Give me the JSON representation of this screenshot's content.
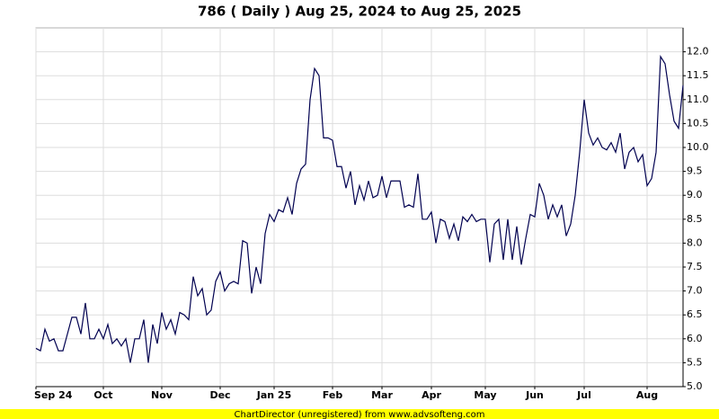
{
  "chart_data": {
    "type": "line",
    "title": "786 ( Daily ) Aug 25, 2024 to Aug 25, 2025",
    "footer": "ChartDirector (unregistered) from www.advsofteng.com",
    "categories": [
      "Sep 24",
      null,
      null,
      null,
      null,
      null,
      null,
      null,
      null,
      null,
      null,
      null,
      null,
      null,
      null,
      "Oct",
      null,
      null,
      null,
      null,
      null,
      null,
      null,
      null,
      null,
      null,
      null,
      null,
      "Nov",
      null,
      null,
      null,
      null,
      null,
      null,
      null,
      null,
      null,
      null,
      null,
      null,
      "Dec",
      null,
      null,
      null,
      null,
      null,
      null,
      null,
      null,
      null,
      null,
      null,
      "Jan 25",
      null,
      null,
      null,
      null,
      null,
      null,
      null,
      null,
      null,
      null,
      null,
      null,
      "Feb",
      null,
      null,
      null,
      null,
      null,
      null,
      null,
      null,
      null,
      null,
      "Mar",
      null,
      null,
      null,
      null,
      null,
      null,
      null,
      null,
      null,
      null,
      "Apr",
      null,
      null,
      null,
      null,
      null,
      null,
      null,
      null,
      null,
      null,
      null,
      "May",
      null,
      null,
      null,
      null,
      null,
      null,
      null,
      null,
      null,
      null,
      "Jun",
      null,
      null,
      null,
      null,
      null,
      null,
      null,
      null,
      null,
      null,
      "Jul",
      null,
      null,
      null,
      null,
      null,
      null,
      null,
      null,
      null,
      null,
      null,
      null,
      null,
      "Aug",
      null,
      null,
      null,
      null,
      null,
      null,
      null,
      null
    ],
    "series": [
      {
        "name": "786",
        "color": "#000050",
        "values": [
          5.8,
          5.75,
          6.2,
          5.95,
          6.0,
          5.75,
          5.75,
          6.1,
          6.45,
          6.45,
          6.1,
          6.75,
          6.0,
          6.0,
          6.2,
          6.0,
          6.3,
          5.9,
          6.0,
          5.85,
          6.0,
          5.5,
          6.0,
          6.0,
          6.4,
          5.5,
          6.3,
          5.9,
          6.55,
          6.2,
          6.4,
          6.1,
          6.55,
          6.5,
          6.4,
          7.3,
          6.9,
          7.05,
          6.5,
          6.6,
          7.2,
          7.4,
          7.0,
          7.15,
          7.2,
          7.15,
          8.05,
          8.0,
          6.95,
          7.5,
          7.15,
          8.2,
          8.6,
          8.45,
          8.7,
          8.65,
          8.95,
          8.6,
          9.25,
          9.55,
          9.65,
          11.0,
          11.65,
          11.5,
          10.2,
          10.2,
          10.15,
          9.6,
          9.6,
          9.15,
          9.5,
          8.8,
          9.2,
          8.9,
          9.3,
          8.95,
          9.0,
          9.4,
          8.95,
          9.3,
          9.3,
          9.3,
          8.75,
          8.8,
          8.75,
          9.45,
          8.5,
          8.5,
          8.65,
          8.0,
          8.5,
          8.45,
          8.1,
          8.4,
          8.05,
          8.55,
          8.45,
          8.6,
          8.45,
          8.5,
          8.5,
          7.6,
          8.4,
          8.5,
          7.65,
          8.5,
          7.65,
          8.35,
          7.55,
          8.1,
          8.6,
          8.55,
          9.25,
          9.0,
          8.5,
          8.8,
          8.55,
          8.8,
          8.15,
          8.4,
          9.0,
          9.9,
          11.0,
          10.3,
          10.05,
          10.2,
          10.0,
          9.95,
          10.1,
          9.9,
          10.3,
          9.55,
          9.9,
          10.0,
          9.7,
          9.85,
          9.2,
          9.35,
          9.9,
          11.9,
          11.75,
          11.1,
          10.55,
          10.4,
          11.3
        ]
      }
    ],
    "ylim": [
      5,
      12.5
    ],
    "yticks": [
      {
        "value": 5,
        "label": "5.0"
      },
      {
        "value": 5.5,
        "label": "5.5"
      },
      {
        "value": 6,
        "label": "6.0"
      },
      {
        "value": 6.5,
        "label": "6.5"
      },
      {
        "value": 7,
        "label": "7.0"
      },
      {
        "value": 7.5,
        "label": "7.5"
      },
      {
        "value": 8,
        "label": "8.0"
      },
      {
        "value": 8.5,
        "label": "8.5"
      },
      {
        "value": 9,
        "label": "9.0"
      },
      {
        "value": 9.5,
        "label": "9.5"
      },
      {
        "value": 10,
        "label": "10.0"
      },
      {
        "value": 10.5,
        "label": "10.5"
      },
      {
        "value": 11,
        "label": "11.0"
      },
      {
        "value": 11.5,
        "label": "11.5"
      },
      {
        "value": 12,
        "label": "12.0"
      }
    ],
    "grid": true
  }
}
